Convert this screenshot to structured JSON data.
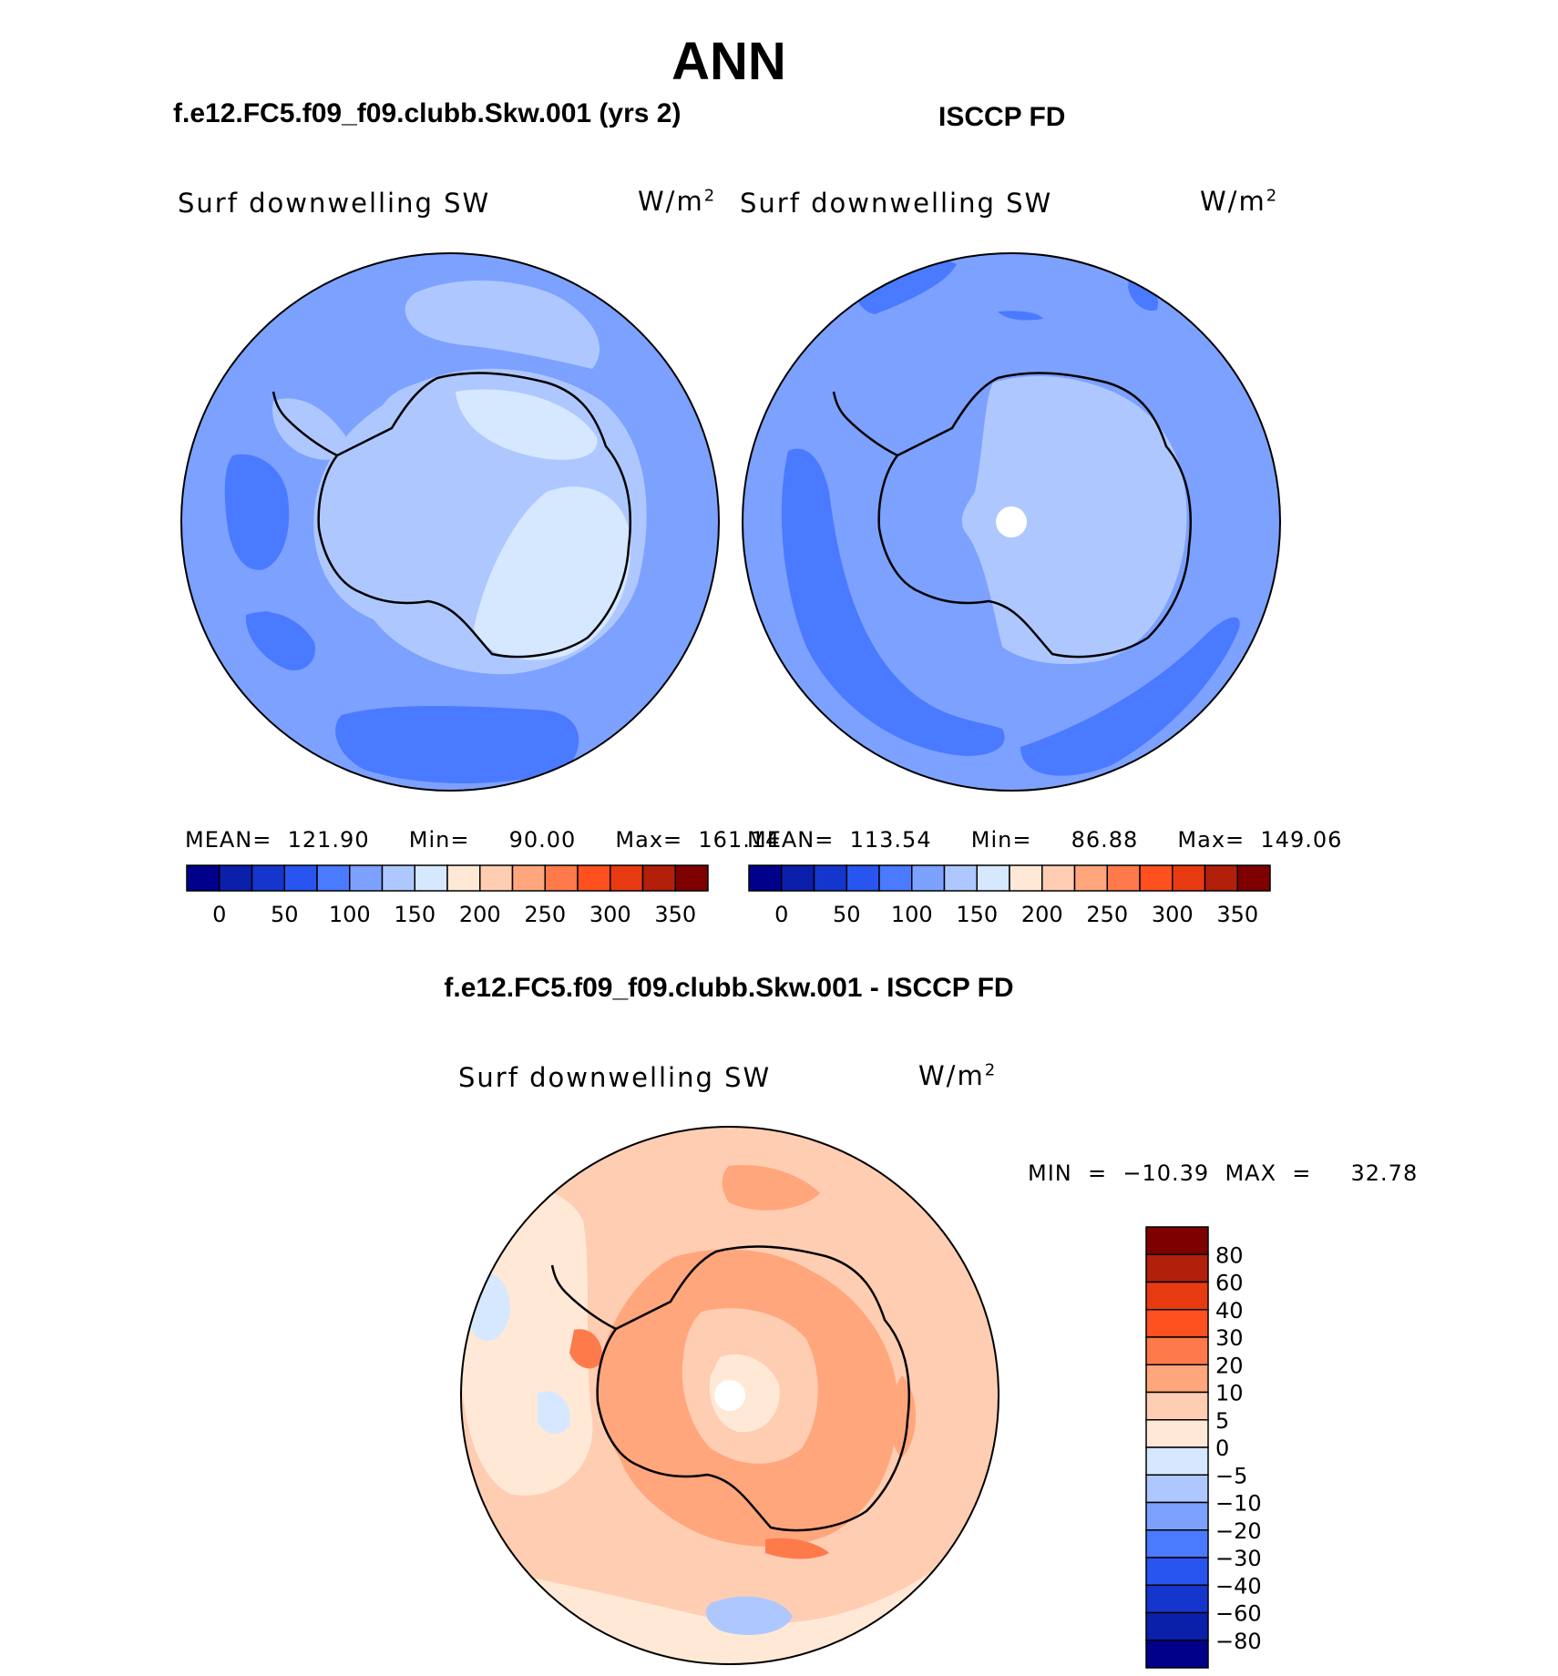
{
  "figure": {
    "title": "ANN"
  },
  "colors": {
    "seq_palette": [
      "#00008b",
      "#0a1faa",
      "#1436cc",
      "#2854f0",
      "#4a7aff",
      "#7ca1ff",
      "#aec8ff",
      "#d6e8ff",
      "#ffe9d6",
      "#ffcdb2",
      "#ffa67c",
      "#ff7a4a",
      "#ff5020",
      "#e83a10",
      "#b21f0a",
      "#7f0000"
    ],
    "diff_palette": [
      "#00008b",
      "#0a1faa",
      "#1436cc",
      "#2854f0",
      "#4a7aff",
      "#7ca1ff",
      "#aec8ff",
      "#d6e8ff",
      "#ffe9d6",
      "#ffcdb2",
      "#ffa67c",
      "#ff7a4a",
      "#ff5020",
      "#e83a10",
      "#b21f0a",
      "#7f0000"
    ],
    "coastline": "#000000",
    "pole_hole": "#ffffff"
  },
  "panels": [
    {
      "title": "f.e12.FC5.f09_f09.clubb.Skw.001 (yrs 2)",
      "variable": "Surf  downwelling  SW",
      "units": "W/m",
      "units_sup": "2",
      "stats": "MEAN=  121.90     Min=     90.00     Max=  161.14"
    },
    {
      "title": "ISCCP FD",
      "variable": "Surf  downwelling  SW",
      "units": "W/m",
      "units_sup": "2",
      "stats": "MEAN=  113.54     Min=     86.88     Max=  149.06"
    },
    {
      "title": "f.e12.FC5.f09_f09.clubb.Skw.001 - ISCCP FD",
      "variable": "Surf  downwelling  SW",
      "units": "W/m",
      "units_sup": "2",
      "stats": "MIN  =  −10.39  MAX  =     32.78"
    }
  ],
  "chart_data": [
    {
      "type": "heatmap",
      "projection": "south polar stereographic",
      "title": "f.e12.FC5.f09_f09.clubb.Skw.001 (yrs 2)",
      "variable": "Surf downwelling SW",
      "units": "W/m2",
      "mean": 121.9,
      "min": 90.0,
      "max": 161.14,
      "colorbar": {
        "orientation": "horizontal",
        "tick_labels": [
          "0",
          "50",
          "100",
          "150",
          "200",
          "250",
          "300",
          "350"
        ],
        "ticks": [
          0,
          50,
          100,
          150,
          200,
          250,
          300,
          350
        ],
        "range": [
          -25,
          375
        ],
        "bins": 16
      }
    },
    {
      "type": "heatmap",
      "projection": "south polar stereographic",
      "title": "ISCCP FD",
      "variable": "Surf downwelling SW",
      "units": "W/m2",
      "mean": 113.54,
      "min": 86.88,
      "max": 149.06,
      "colorbar": {
        "orientation": "horizontal",
        "tick_labels": [
          "0",
          "50",
          "100",
          "150",
          "200",
          "250",
          "300",
          "350"
        ],
        "ticks": [
          0,
          50,
          100,
          150,
          200,
          250,
          300,
          350
        ],
        "range": [
          -25,
          375
        ],
        "bins": 16
      }
    },
    {
      "type": "heatmap",
      "projection": "south polar stereographic",
      "title": "f.e12.FC5.f09_f09.clubb.Skw.001 - ISCCP FD",
      "variable": "Surf downwelling SW",
      "units": "W/m2",
      "min": -10.39,
      "max": 32.78,
      "colorbar": {
        "orientation": "vertical",
        "tick_labels": [
          "80",
          "60",
          "40",
          "30",
          "20",
          "10",
          "5",
          "0",
          "−5",
          "−10",
          "−20",
          "−30",
          "−40",
          "−60",
          "−80"
        ],
        "levels": [
          80,
          60,
          40,
          30,
          20,
          10,
          5,
          0,
          -5,
          -10,
          -20,
          -30,
          -40,
          -60,
          -80
        ],
        "bins": 16
      }
    }
  ]
}
